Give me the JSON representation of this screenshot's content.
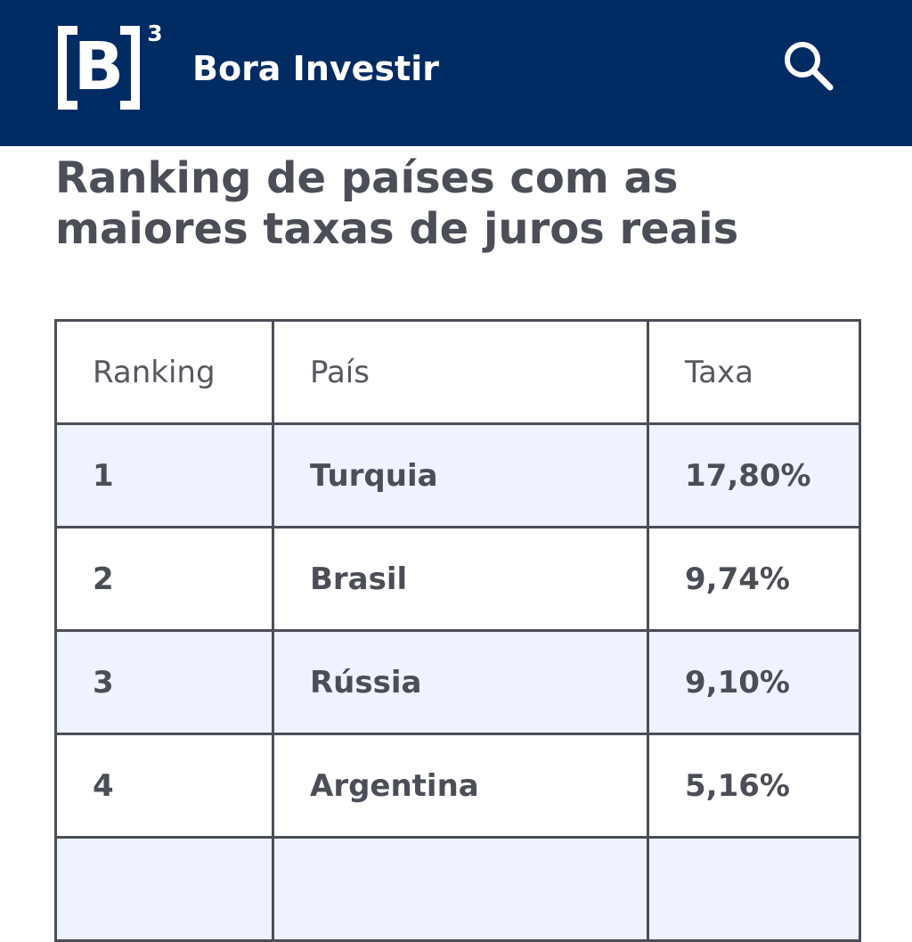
{
  "header": {
    "logo": {
      "letter": "B",
      "superscript": "3"
    },
    "brand_name": "Bora Investir",
    "search_icon": "search-icon"
  },
  "page": {
    "title": "Ranking de países com as maiores taxas de juros reais"
  },
  "table": {
    "headers": {
      "ranking": "Ranking",
      "country": "País",
      "rate": "Taxa"
    },
    "rows": [
      {
        "rank": "1",
        "country": "Turquia",
        "rate": "17,80%"
      },
      {
        "rank": "2",
        "country": "Brasil",
        "rate": "9,74%"
      },
      {
        "rank": "3",
        "country": "Rússia",
        "rate": "9,10%"
      },
      {
        "rank": "4",
        "country": "Argentina",
        "rate": "5,16%"
      },
      {
        "rank": "",
        "country": "",
        "rate": ""
      }
    ]
  },
  "colors": {
    "header_background": "#002b63",
    "text": "#4b4e57",
    "highlight_row": "#eef3fd",
    "white": "#ffffff"
  }
}
